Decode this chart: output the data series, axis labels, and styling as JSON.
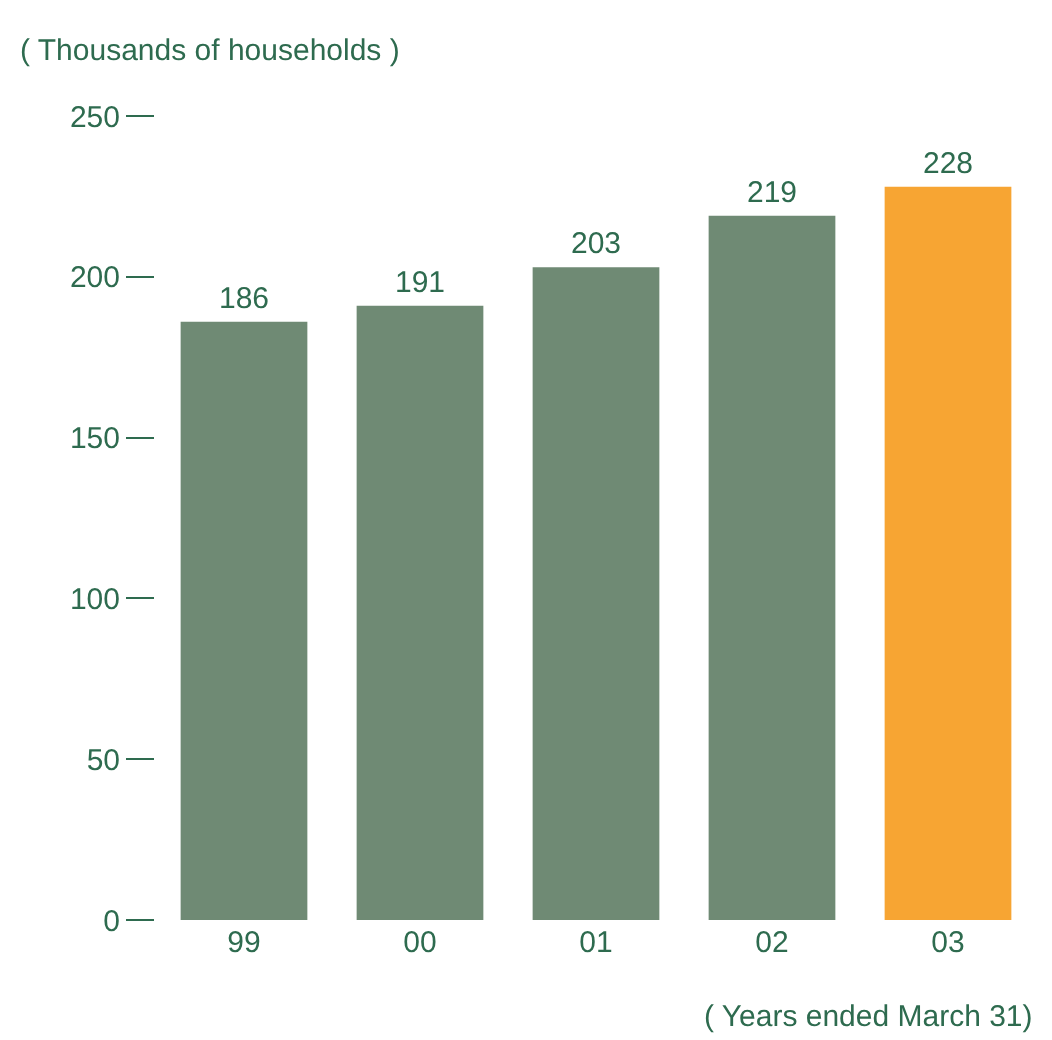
{
  "chart_data": {
    "type": "bar",
    "categories": [
      "99",
      "00",
      "01",
      "02",
      "03"
    ],
    "values": [
      186,
      191,
      203,
      219,
      228
    ],
    "colors": [
      "#6f8a74",
      "#6f8a74",
      "#6f8a74",
      "#6f8a74",
      "#f7a533"
    ],
    "ylim": [
      0,
      250
    ],
    "yticks": [
      0,
      50,
      100,
      150,
      200,
      250
    ],
    "ylabel": "( Thousands of households )",
    "xlabel": "( Years ended March 31)",
    "data_labels": true
  }
}
